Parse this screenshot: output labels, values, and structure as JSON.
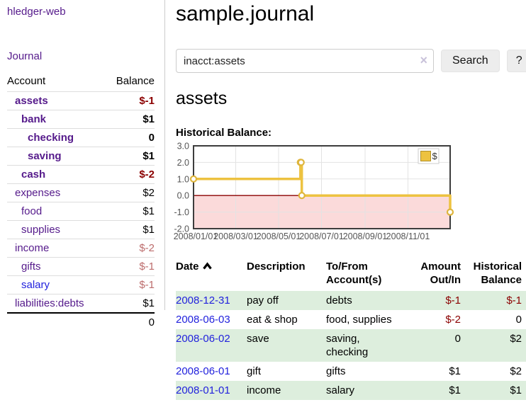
{
  "colors": {
    "link_purple": "#551a8b",
    "link_blue": "#2222dd",
    "negative_strong": "#8b0000",
    "negative_soft": "#bc6c6c",
    "row_highlight_green": "#ddeedd",
    "series_gold": "#edc240"
  },
  "sidebar": {
    "brand": "hledger-web",
    "journal_link": "Journal",
    "accounts_header": {
      "account": "Account",
      "balance": "Balance"
    },
    "accounts": [
      {
        "name": "assets",
        "balance": "$-1",
        "depth": 0,
        "bold": true,
        "balance_style": "neg-strong"
      },
      {
        "name": "bank",
        "balance": "$1",
        "depth": 1,
        "bold": true,
        "balance_style": ""
      },
      {
        "name": "checking",
        "balance": "0",
        "depth": 2,
        "bold": true,
        "balance_style": ""
      },
      {
        "name": "saving",
        "balance": "$1",
        "depth": 2,
        "bold": true,
        "balance_style": ""
      },
      {
        "name": "cash",
        "balance": "$-2",
        "depth": 1,
        "bold": true,
        "balance_style": "neg-strong"
      },
      {
        "name": "expenses",
        "balance": "$2",
        "depth": 0,
        "bold": false,
        "balance_style": ""
      },
      {
        "name": "food",
        "balance": "$1",
        "depth": 1,
        "bold": false,
        "balance_style": ""
      },
      {
        "name": "supplies",
        "balance": "$1",
        "depth": 1,
        "bold": false,
        "balance_style": ""
      },
      {
        "name": "income",
        "balance": "$-2",
        "depth": 0,
        "bold": false,
        "balance_style": "neg-soft"
      },
      {
        "name": "gifts",
        "balance": "$-1",
        "depth": 1,
        "bold": false,
        "balance_style": "neg-soft"
      },
      {
        "name": "salary",
        "balance": "$-1",
        "depth": 1,
        "bold": false,
        "balance_style": "neg-soft",
        "link_style": "blue"
      },
      {
        "name": "liabilities:debts",
        "balance": "$1",
        "depth": 0,
        "bold": false,
        "balance_style": ""
      }
    ],
    "total": "0"
  },
  "main": {
    "title": "sample.journal",
    "account_heading": "assets",
    "chart_label": "Historical Balance:"
  },
  "search": {
    "value": "inacct:assets",
    "clear_icon": "×",
    "search_label": "Search",
    "help_label": "?"
  },
  "register": {
    "headers": {
      "date": "Date",
      "sort_icon": "chevron-up",
      "description": "Description",
      "accounts": "To/From Account(s)",
      "amount": "Amount Out/In",
      "balance": "Historical Balance"
    },
    "rows": [
      {
        "date": "2008-12-31",
        "description": "pay off",
        "accounts": "debts",
        "amount": "$-1",
        "amount_neg": true,
        "balance": "$-1",
        "balance_neg": true,
        "highlight": true
      },
      {
        "date": "2008-06-03",
        "description": "eat & shop",
        "accounts": "food, supplies",
        "amount": "$-2",
        "amount_neg": true,
        "balance": "0",
        "balance_neg": false,
        "highlight": false
      },
      {
        "date": "2008-06-02",
        "description": "save",
        "accounts": "saving, checking",
        "amount": "0",
        "amount_neg": false,
        "balance": "$2",
        "balance_neg": false,
        "highlight": true
      },
      {
        "date": "2008-06-01",
        "description": "gift",
        "accounts": "gifts",
        "amount": "$1",
        "amount_neg": false,
        "balance": "$2",
        "balance_neg": false,
        "highlight": false
      },
      {
        "date": "2008-01-01",
        "description": "income",
        "accounts": "salary",
        "amount": "$1",
        "amount_neg": false,
        "balance": "$1",
        "balance_neg": false,
        "highlight": true
      }
    ]
  },
  "chart_data": {
    "type": "line",
    "step": true,
    "title": "Historical Balance",
    "x_domain": [
      "2008-01-01",
      "2008-12-31"
    ],
    "ylim": [
      -2,
      3
    ],
    "y_ticks": [
      3.0,
      2.0,
      1.0,
      0.0,
      -1.0,
      -2.0
    ],
    "x_ticks": [
      "2008/01/01",
      "2008/03/01",
      "2008/05/01",
      "2008/07/01",
      "2008/09/01",
      "2008/11/01"
    ],
    "series": [
      {
        "name": "$",
        "color": "#edc240",
        "marker_color": "#deb53c",
        "points": [
          [
            "2008-01-01",
            1
          ],
          [
            "2008-06-01",
            2
          ],
          [
            "2008-06-02",
            2
          ],
          [
            "2008-06-03",
            0
          ],
          [
            "2008-12-31",
            -1
          ]
        ]
      }
    ],
    "grid": true,
    "legend_position": "top-right",
    "negative_region_fill": "#fbdada",
    "zero_line_color": "#8b0000",
    "axis_text_color": "#555555"
  }
}
